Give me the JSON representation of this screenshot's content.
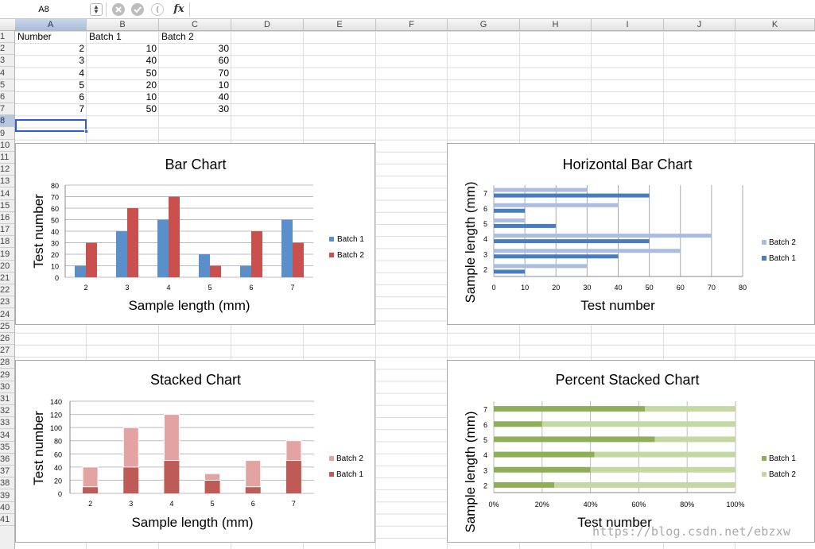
{
  "formula_bar": {
    "cell_ref": "A8",
    "stepper_icon": "up-down-stepper-icon",
    "cancel_icon": "cancel-x-icon",
    "accept_icon": "checkmark-icon",
    "paren_icon": "open-paren-icon",
    "fx_label": "fx",
    "formula_value": ""
  },
  "columns": [
    "A",
    "B",
    "C",
    "D",
    "E",
    "F",
    "G",
    "H",
    "I",
    "J",
    "K"
  ],
  "rows": [
    "1",
    "2",
    "3",
    "4",
    "5",
    "6",
    "7",
    "8",
    "9",
    "10",
    "11",
    "12",
    "13",
    "14",
    "15",
    "16",
    "17",
    "18",
    "19",
    "20",
    "21",
    "22",
    "23",
    "24",
    "25",
    "26",
    "27",
    "28",
    "29",
    "30",
    "31",
    "32",
    "33",
    "34",
    "35",
    "36",
    "37",
    "38",
    "39",
    "40",
    "41"
  ],
  "selected": {
    "column": "A",
    "row": "8"
  },
  "table": {
    "headers": [
      "Number",
      "Batch 1",
      "Batch 2"
    ],
    "rows": [
      [
        "2",
        "10",
        "30"
      ],
      [
        "3",
        "40",
        "60"
      ],
      [
        "4",
        "50",
        "70"
      ],
      [
        "5",
        "20",
        "10"
      ],
      [
        "6",
        "10",
        "40"
      ],
      [
        "7",
        "50",
        "30"
      ]
    ]
  },
  "colors": {
    "bar_batch1": "#5b8fc9",
    "bar_batch2": "#c9504d",
    "hbar_batch1": "#4a7dbf",
    "hbar_batch2": "#a9bde3",
    "stack_batch1": "#bf5b57",
    "stack_batch2": "#e3a3a2",
    "pct_batch1": "#8fae58",
    "pct_batch2": "#c4d8a3",
    "selection": "#2a5dd9"
  },
  "watermark": "https://blog.csdn.net/ebzxw",
  "chart_data": [
    {
      "type": "bar",
      "title": "Bar Chart",
      "xlabel": "Sample length (mm)",
      "ylabel": "Test number",
      "categories": [
        "2",
        "3",
        "4",
        "5",
        "6",
        "7"
      ],
      "series": [
        {
          "name": "Batch 1",
          "values": [
            10,
            40,
            50,
            20,
            10,
            50
          ]
        },
        {
          "name": "Batch 2",
          "values": [
            30,
            60,
            70,
            10,
            40,
            30
          ]
        }
      ],
      "ylim": [
        0,
        80
      ],
      "yticks": [
        "0",
        "10",
        "20",
        "30",
        "40",
        "50",
        "60",
        "70",
        "80"
      ],
      "legend": [
        "Batch 1",
        "Batch 2"
      ],
      "grid": true,
      "legend_position": "right"
    },
    {
      "type": "bar",
      "orientation": "horizontal",
      "title": "Horizontal Bar Chart",
      "xlabel": "Test number",
      "ylabel": "Sample length (mm)",
      "categories": [
        "2",
        "3",
        "4",
        "5",
        "6",
        "7"
      ],
      "series": [
        {
          "name": "Batch 1",
          "values": [
            10,
            40,
            50,
            20,
            10,
            50
          ]
        },
        {
          "name": "Batch 2",
          "values": [
            30,
            60,
            70,
            10,
            40,
            30
          ]
        }
      ],
      "xlim": [
        0,
        80
      ],
      "xticks": [
        "0",
        "10",
        "20",
        "30",
        "40",
        "50",
        "60",
        "70",
        "80"
      ],
      "legend": [
        "Batch 2",
        "Batch 1"
      ],
      "grid": true,
      "legend_position": "right"
    },
    {
      "type": "bar",
      "stacked": true,
      "title": "Stacked Chart",
      "xlabel": "Sample length (mm)",
      "ylabel": "Test number",
      "categories": [
        "2",
        "3",
        "4",
        "5",
        "6",
        "7"
      ],
      "series": [
        {
          "name": "Batch 1",
          "values": [
            10,
            40,
            50,
            20,
            10,
            50
          ]
        },
        {
          "name": "Batch 2",
          "values": [
            30,
            60,
            70,
            10,
            40,
            30
          ]
        }
      ],
      "ylim": [
        0,
        140
      ],
      "yticks": [
        "0",
        "20",
        "40",
        "60",
        "80",
        "100",
        "120",
        "140"
      ],
      "legend": [
        "Batch 2",
        "Batch 1"
      ],
      "grid": true,
      "legend_position": "right"
    },
    {
      "type": "bar",
      "orientation": "horizontal",
      "stacked": "percent",
      "title": "Percent Stacked Chart",
      "xlabel": "Test number",
      "ylabel": "Sample length (mm)",
      "categories": [
        "2",
        "3",
        "4",
        "5",
        "6",
        "7"
      ],
      "series": [
        {
          "name": "Batch 1",
          "values": [
            10,
            40,
            50,
            20,
            10,
            50
          ]
        },
        {
          "name": "Batch 2",
          "values": [
            30,
            60,
            70,
            10,
            40,
            30
          ]
        }
      ],
      "xlim": [
        0,
        100
      ],
      "xticks": [
        "0%",
        "20%",
        "40%",
        "60%",
        "80%",
        "100%"
      ],
      "legend": [
        "Batch 1",
        "Batch 2"
      ],
      "grid": true,
      "legend_position": "right"
    }
  ]
}
